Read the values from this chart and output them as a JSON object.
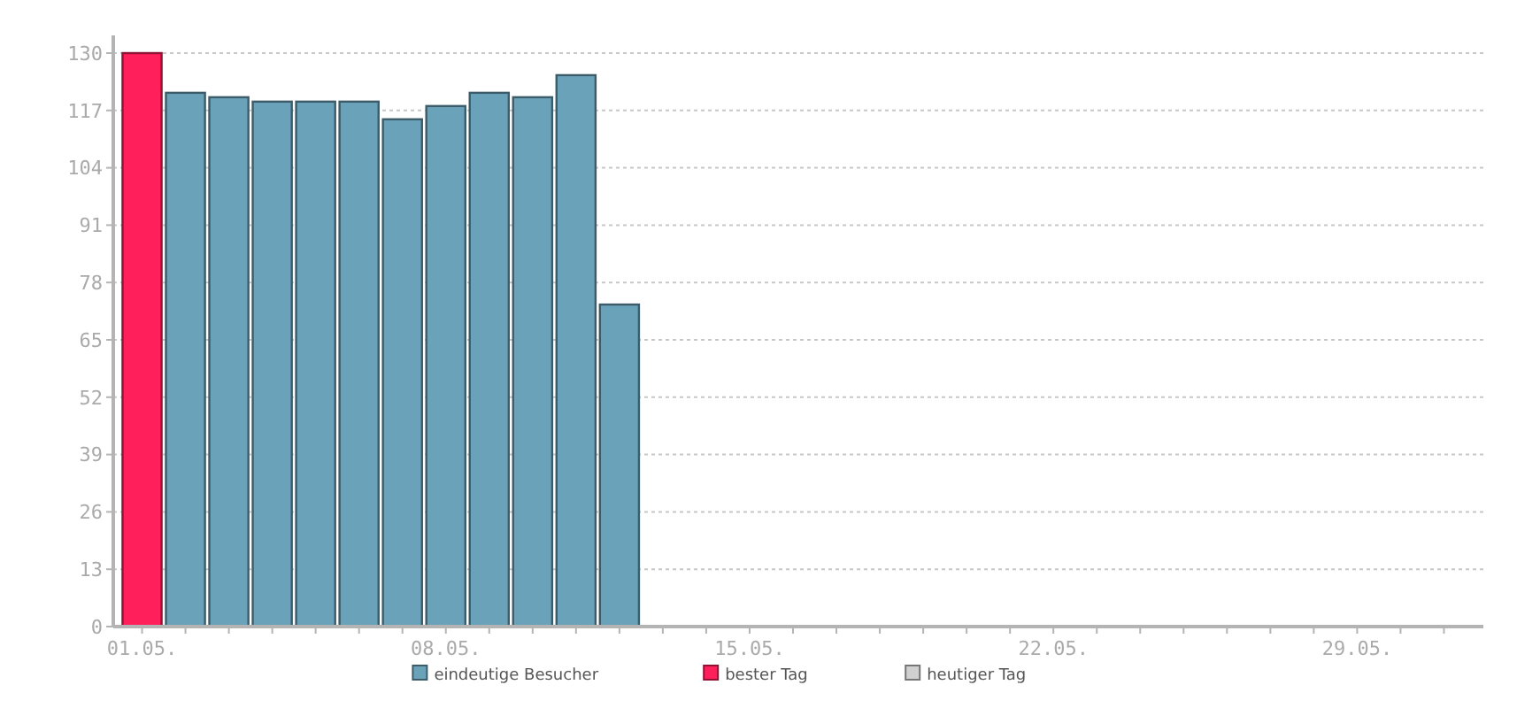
{
  "chart_data": {
    "type": "bar",
    "stacked": true,
    "categories": [
      "01.05.",
      null,
      null,
      null,
      null,
      null,
      null,
      "08.05.",
      null,
      null,
      null,
      null,
      null,
      null,
      "15.05.",
      null,
      null,
      null,
      null,
      null,
      null,
      "22.05.",
      null,
      null,
      null,
      null,
      null,
      null,
      "29.05.",
      null,
      null
    ],
    "series": [
      {
        "name": "eindeutige Besucher",
        "color": "#6aa2ba",
        "values": [
          null,
          121,
          120,
          119,
          119,
          119,
          115,
          118,
          121,
          120,
          125,
          73,
          null,
          null,
          null,
          null,
          null,
          null,
          null,
          null,
          null,
          null,
          null,
          null,
          null,
          null,
          null,
          null,
          null,
          null,
          null
        ]
      },
      {
        "name": "bester Tag",
        "color": "#ff1f5a",
        "values": [
          130,
          null,
          null,
          null,
          null,
          null,
          null,
          null,
          null,
          null,
          null,
          null,
          null,
          null,
          null,
          null,
          null,
          null,
          null,
          null,
          null,
          null,
          null,
          null,
          null,
          null,
          null,
          null,
          null,
          null,
          null
        ]
      },
      {
        "name": "heutiger Tag",
        "color": "#d0d0d0",
        "values": [
          null,
          null,
          null,
          null,
          null,
          null,
          null,
          null,
          null,
          null,
          null,
          null,
          null,
          null,
          null,
          null,
          null,
          null,
          null,
          null,
          null,
          null,
          null,
          null,
          null,
          null,
          null,
          null,
          null,
          null,
          null
        ]
      }
    ],
    "ylim": [
      0,
      130
    ],
    "yticks": [
      0,
      13,
      26,
      39,
      52,
      65,
      78,
      91,
      104,
      117,
      130
    ],
    "grid": "y",
    "legend": "bottom"
  }
}
